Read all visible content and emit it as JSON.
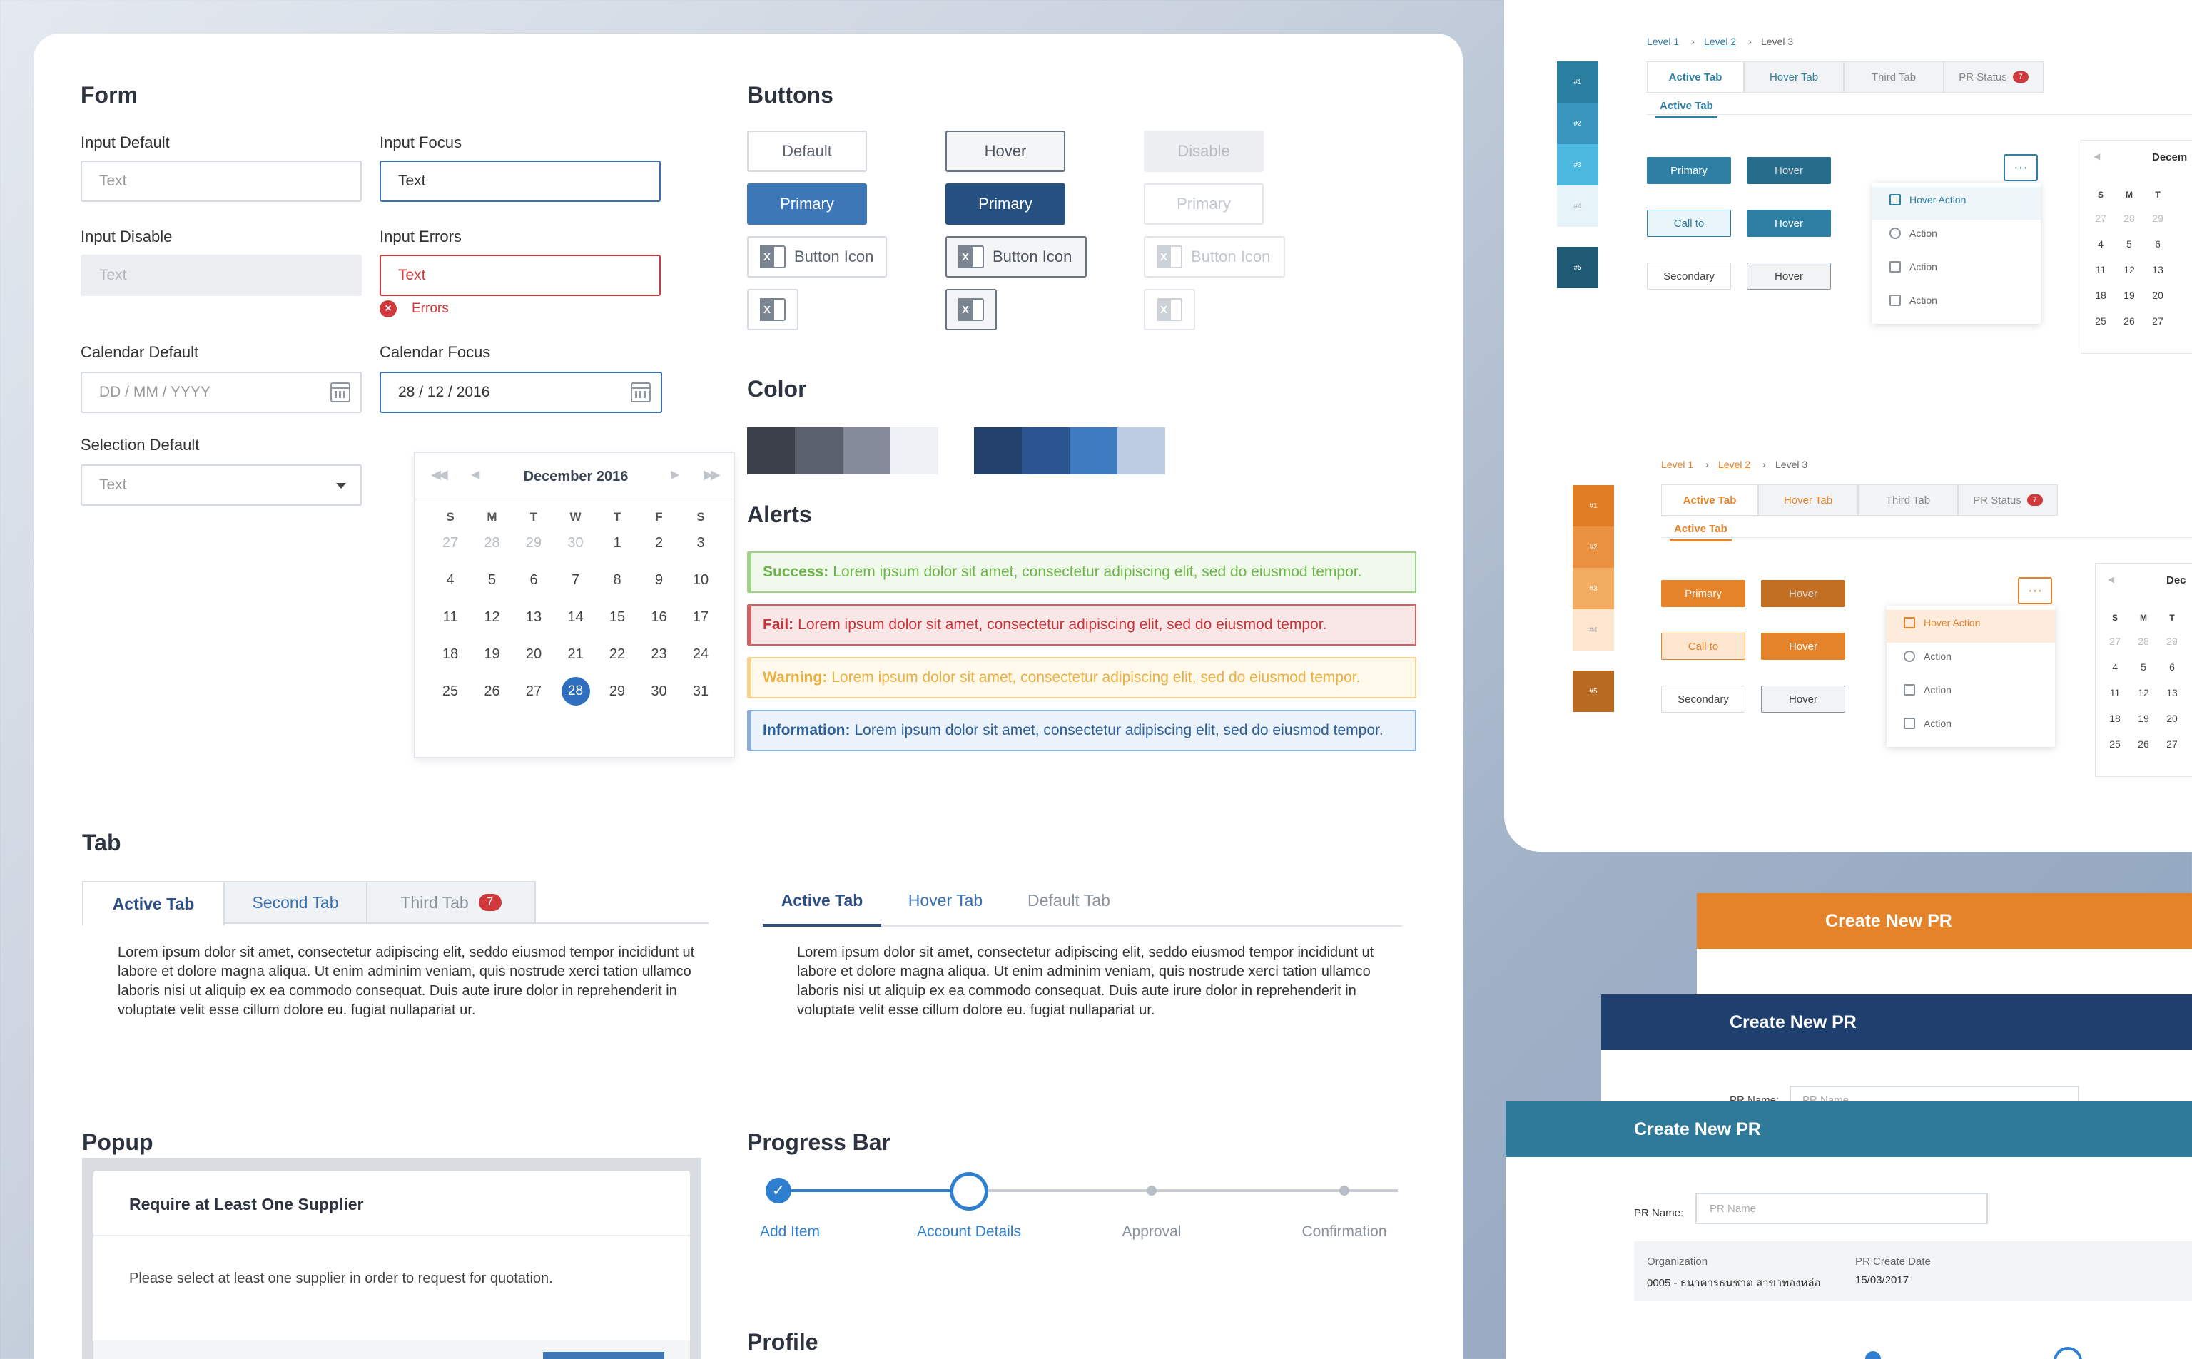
{
  "form": {
    "title": "Form",
    "input_default_label": "Input Default",
    "input_default_placeholder": "Text",
    "input_focus_label": "Input Focus",
    "input_focus_value": "Text",
    "input_disable_label": "Input Disable",
    "input_disable_placeholder": "Text",
    "input_errors_label": "Input Errors",
    "input_errors_value": "Text",
    "errors_text": "Errors",
    "calendar_default_label": "Calendar Default",
    "calendar_default_placeholder": "DD / MM / YYYY",
    "calendar_focus_label": "Calendar Focus",
    "calendar_focus_value": "28 / 12 / 2016",
    "selection_label": "Selection Default",
    "selection_value": "Text"
  },
  "calendar": {
    "month": "December 2016",
    "weekdays": [
      "S",
      "M",
      "T",
      "W",
      "T",
      "F",
      "S"
    ],
    "rows": [
      [
        "27",
        "28",
        "29",
        "30",
        "1",
        "2",
        "3"
      ],
      [
        "4",
        "5",
        "6",
        "7",
        "8",
        "9",
        "10"
      ],
      [
        "11",
        "12",
        "13",
        "14",
        "15",
        "16",
        "17"
      ],
      [
        "18",
        "19",
        "20",
        "21",
        "22",
        "23",
        "24"
      ],
      [
        "25",
        "26",
        "27",
        "28",
        "29",
        "30",
        "31"
      ]
    ],
    "selected": "28",
    "today": "27"
  },
  "buttons": {
    "title": "Buttons",
    "default": "Default",
    "hover": "Hover",
    "disable": "Disable",
    "primary": "Primary",
    "button_icon": "Button Icon",
    "excel_glyph": "X"
  },
  "color": {
    "title": "Color",
    "grays": [
      "#3b404a",
      "#5a616d",
      "#838b9a",
      "#eef1f5"
    ],
    "blues": [
      "#23406c",
      "#2b5590",
      "#3f7bc0",
      "#bccbe0"
    ]
  },
  "alerts": {
    "title": "Alerts",
    "items": [
      {
        "label": "Success:",
        "text": "Lorem ipsum dolor sit amet, consectetur adipiscing elit, sed do eiusmod tempor."
      },
      {
        "label": "Fail:",
        "text": "Lorem ipsum dolor sit amet, consectetur adipiscing elit, sed do eiusmod tempor."
      },
      {
        "label": "Warning:",
        "text": "Lorem ipsum dolor sit amet, consectetur adipiscing elit, sed do eiusmod tempor."
      },
      {
        "label": "Information:",
        "text": "Lorem ipsum dolor sit amet, consectetur adipiscing elit, sed do eiusmod tempor."
      }
    ]
  },
  "tab": {
    "title": "Tab",
    "boxed": [
      "Active Tab",
      "Second Tab",
      "Third Tab"
    ],
    "boxed_badge": "7",
    "underline": [
      "Active Tab",
      "Hover Tab",
      "Default Tab"
    ],
    "para": "Lorem ipsum dolor sit amet, consectetur adipiscing elit, seddo eiusmod tempor incididunt ut labore et dolore magna aliqua. Ut enim adminim veniam, quis nostrude xerci tation ullamco laboris nisi ut aliquip ex ea commodo consequat. Duis aute irure dolor in reprehenderit in voluptate velit esse cillum dolore eu. fugiat nullapariat ur."
  },
  "popup": {
    "title": "Popup",
    "heading": "Require at Least One Supplier",
    "body": "Please select at least one supplier in order to request for quotation."
  },
  "progress": {
    "title": "Progress Bar",
    "steps": [
      "Add Item",
      "Account Details",
      "Approval",
      "Confirmation"
    ],
    "current_step": 2
  },
  "profile": {
    "title": "Profile"
  },
  "right_blue": {
    "breadcrumb": [
      "Level 1",
      "Level 2",
      "Level 3"
    ],
    "tabs": [
      "Active Tab",
      "Hover Tab",
      "Third Tab",
      "PR Status"
    ],
    "badge": "7",
    "active_tab": "Active Tab",
    "swatches": [
      "#1",
      "#2",
      "#3",
      "#4",
      "#5"
    ],
    "swatch_colors": [
      "#2a7ea0",
      "#3a95be",
      "#4cb8e0",
      "#e6f4fa",
      "#1f5a74"
    ],
    "buttons": [
      "Primary",
      "Hover",
      "Call to",
      "Hover",
      "Secondary",
      "Hover"
    ],
    "menu": [
      "Hover Action",
      "Action",
      "Action",
      "Action"
    ],
    "more": "···",
    "cal_month": "Decem",
    "cal_weekdays": [
      "S",
      "M",
      "T"
    ],
    "cal_rows": [
      [
        "27",
        "28",
        "29"
      ],
      [
        "4",
        "5",
        "6"
      ],
      [
        "11",
        "12",
        "13"
      ],
      [
        "18",
        "19",
        "20"
      ],
      [
        "25",
        "26",
        "27"
      ]
    ],
    "accent": "#2e7fa3"
  },
  "right_orange": {
    "breadcrumb": [
      "Level 1",
      "Level 2",
      "Level 3"
    ],
    "tabs": [
      "Active Tab",
      "Hover Tab",
      "Third Tab",
      "PR Status"
    ],
    "badge": "7",
    "active_tab": "Active Tab",
    "swatches": [
      "#1",
      "#2",
      "#3",
      "#4",
      "#5"
    ],
    "swatch_colors": [
      "#e07d24",
      "#ea9140",
      "#f3ad62",
      "#fde6d0",
      "#b86a22"
    ],
    "buttons": [
      "Primary",
      "Hover",
      "Call to",
      "Hover",
      "Secondary",
      "Hover"
    ],
    "menu": [
      "Hover Action",
      "Action",
      "Action",
      "Action"
    ],
    "more": "···",
    "cal_month": "Dec",
    "cal_weekdays": [
      "S",
      "M",
      "T"
    ],
    "cal_rows": [
      [
        "27",
        "28",
        "29"
      ],
      [
        "4",
        "5",
        "6"
      ],
      [
        "11",
        "12",
        "13"
      ],
      [
        "18",
        "19",
        "20"
      ],
      [
        "25",
        "26",
        "27"
      ]
    ],
    "accent": "#e4832a"
  },
  "pr_cards": {
    "orange_title": "Create New PR",
    "navy_title": "Create New PR",
    "navy_field_label": "PR Name:",
    "navy_field_placeholder": "PR Name",
    "teal_title": "Create New PR",
    "teal_field_label": "PR Name:",
    "teal_field_placeholder": "PR Name",
    "org_label": "Organization",
    "org_value": "0005 - ธนาคารธนชาต สาขาทองหล่อ",
    "date_label": "PR Create Date",
    "date_value": "15/03/2017"
  }
}
